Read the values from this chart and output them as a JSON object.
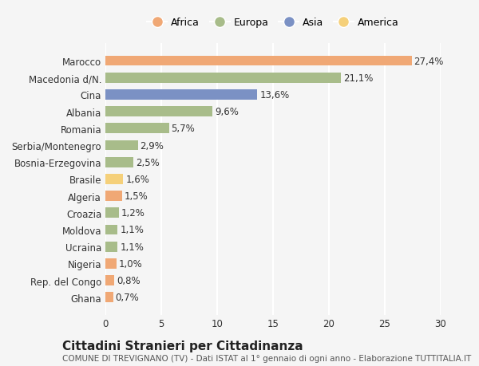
{
  "countries": [
    "Ghana",
    "Rep. del Congo",
    "Nigeria",
    "Ucraina",
    "Moldova",
    "Croazia",
    "Algeria",
    "Brasile",
    "Bosnia-Erzegovina",
    "Serbia/Montenegro",
    "Romania",
    "Albania",
    "Cina",
    "Macedonia d/N.",
    "Marocco"
  ],
  "values": [
    0.7,
    0.8,
    1.0,
    1.1,
    1.1,
    1.2,
    1.5,
    1.6,
    2.5,
    2.9,
    5.7,
    9.6,
    13.6,
    21.1,
    27.4
  ],
  "labels": [
    "0,7%",
    "0,8%",
    "1,0%",
    "1,1%",
    "1,1%",
    "1,2%",
    "1,5%",
    "1,6%",
    "2,5%",
    "2,9%",
    "5,7%",
    "9,6%",
    "13,6%",
    "21,1%",
    "27,4%"
  ],
  "continents": [
    "Africa",
    "Africa",
    "Africa",
    "Europa",
    "Europa",
    "Europa",
    "Africa",
    "America",
    "Europa",
    "Europa",
    "Europa",
    "Europa",
    "Asia",
    "Europa",
    "Africa"
  ],
  "colors": {
    "Africa": "#F0A875",
    "Europa": "#A8BC8A",
    "Asia": "#7B91C4",
    "America": "#F5D07A"
  },
  "legend_order": [
    "Africa",
    "Europa",
    "Asia",
    "America"
  ],
  "legend_colors": [
    "#F0A875",
    "#A8BC8A",
    "#7B91C4",
    "#F5D07A"
  ],
  "title": "Cittadini Stranieri per Cittadinanza",
  "subtitle": "COMUNE DI TREVIGNANO (TV) - Dati ISTAT al 1° gennaio di ogni anno - Elaborazione TUTTITALIA.IT",
  "xlim": [
    0,
    30
  ],
  "xticks": [
    0,
    5,
    10,
    15,
    20,
    25,
    30
  ],
  "background_color": "#f5f5f5",
  "grid_color": "#ffffff",
  "label_fontsize": 8.5,
  "tick_fontsize": 8.5,
  "title_fontsize": 11,
  "subtitle_fontsize": 7.5
}
